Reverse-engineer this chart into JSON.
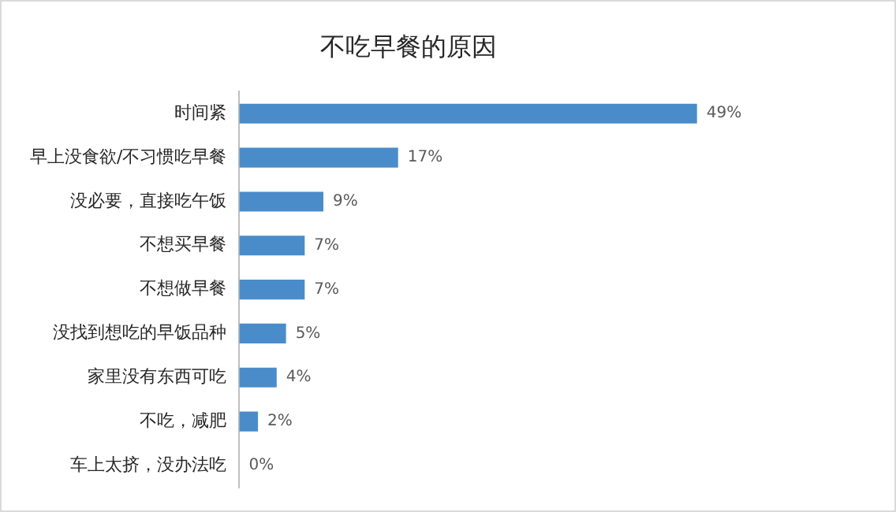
{
  "chart_data": {
    "type": "bar",
    "orientation": "horizontal",
    "title": "不吃早餐的原因",
    "categories": [
      "时间紧",
      "早上没食欲/不习惯吃早餐",
      "没必要，直接吃午饭",
      "不想买早餐",
      "不想做早餐",
      "没找到想吃的早饭品种",
      "家里没有东西可吃",
      "不吃，减肥",
      "车上太挤，没办法吃"
    ],
    "values": [
      49,
      17,
      9,
      7,
      7,
      5,
      4,
      2,
      0
    ],
    "value_labels": [
      "49%",
      "17%",
      "9%",
      "7%",
      "7%",
      "5%",
      "4%",
      "2%",
      "0%"
    ],
    "color": "#4a8cca",
    "legend": false,
    "tick_labels": "y"
  }
}
